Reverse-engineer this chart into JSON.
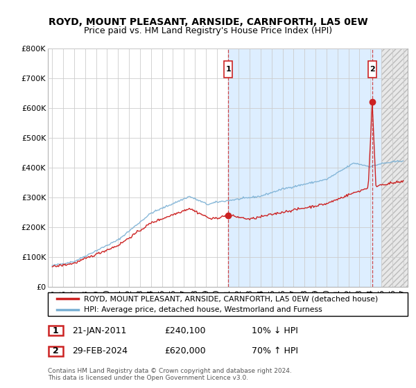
{
  "title": "ROYD, MOUNT PLEASANT, ARNSIDE, CARNFORTH, LA5 0EW",
  "subtitle": "Price paid vs. HM Land Registry's House Price Index (HPI)",
  "ylim": [
    0,
    800000
  ],
  "yticks": [
    0,
    100000,
    200000,
    300000,
    400000,
    500000,
    600000,
    700000,
    800000
  ],
  "ytick_labels": [
    "£0",
    "£100K",
    "£200K",
    "£300K",
    "£400K",
    "£500K",
    "£600K",
    "£700K",
    "£800K"
  ],
  "hpi_color": "#7ab0d4",
  "price_color": "#cc2222",
  "marker1_x": 2011.055,
  "marker2_x": 2024.164,
  "marker1_value": 240100,
  "marker2_value": 620000,
  "shade_start": 2011.055,
  "hatch_start": 2025.0,
  "xmin": 1994.6,
  "xmax": 2027.4,
  "legend_line1": "ROYD, MOUNT PLEASANT, ARNSIDE, CARNFORTH, LA5 0EW (detached house)",
  "legend_line2": "HPI: Average price, detached house, Westmorland and Furness",
  "table_row1": [
    "1",
    "21-JAN-2011",
    "£240,100",
    "10% ↓ HPI"
  ],
  "table_row2": [
    "2",
    "29-FEB-2024",
    "£620,000",
    "70% ↑ HPI"
  ],
  "footnote": "Contains HM Land Registry data © Crown copyright and database right 2024.\nThis data is licensed under the Open Government Licence v3.0.",
  "background_color": "#ffffff",
  "grid_color": "#cccccc",
  "shade_color": "#ddeeff",
  "hatch_color": "#e8e8e8"
}
